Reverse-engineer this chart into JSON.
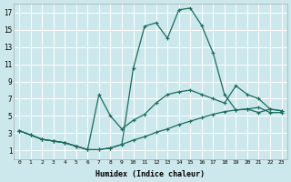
{
  "xlabel": "Humidex (Indice chaleur)",
  "bg_color": "#cce8ec",
  "grid_color": "#ffffff",
  "line_color": "#1a6b5e",
  "xlim": [
    -0.5,
    23.5
  ],
  "ylim": [
    0.0,
    18.0
  ],
  "xticks": [
    0,
    1,
    2,
    3,
    4,
    5,
    6,
    7,
    8,
    9,
    10,
    11,
    12,
    13,
    14,
    15,
    16,
    17,
    18,
    19,
    20,
    21,
    22,
    23
  ],
  "yticks": [
    1,
    3,
    5,
    7,
    9,
    11,
    13,
    15,
    17
  ],
  "line1_x": [
    0,
    1,
    2,
    3,
    4,
    5,
    6,
    7,
    8,
    9,
    10,
    11,
    12,
    13,
    14,
    15,
    16,
    17,
    18,
    19,
    20,
    21,
    22,
    23
  ],
  "line1_y": [
    3.3,
    2.8,
    2.3,
    2.1,
    1.9,
    1.5,
    1.1,
    1.1,
    1.3,
    1.7,
    2.2,
    2.6,
    3.1,
    3.5,
    4.0,
    4.4,
    4.8,
    5.2,
    5.5,
    5.7,
    5.8,
    6.0,
    5.4,
    5.4
  ],
  "line2_x": [
    0,
    1,
    2,
    3,
    4,
    5,
    6,
    7,
    8,
    9,
    10,
    11,
    12,
    13,
    14,
    15,
    16,
    17,
    18,
    19,
    20,
    21,
    22,
    23
  ],
  "line2_y": [
    3.3,
    2.8,
    2.3,
    2.1,
    1.9,
    1.5,
    1.1,
    7.5,
    5.0,
    3.5,
    4.5,
    5.2,
    6.5,
    7.5,
    7.8,
    8.0,
    7.5,
    7.0,
    6.5,
    8.5,
    7.5,
    7.0,
    5.8,
    5.6
  ],
  "line3_x": [
    0,
    1,
    2,
    3,
    4,
    5,
    6,
    7,
    8,
    9,
    10,
    11,
    12,
    13,
    14,
    15,
    16,
    17,
    18,
    19,
    20,
    21,
    22,
    23
  ],
  "line3_y": [
    3.3,
    2.8,
    2.3,
    2.1,
    1.9,
    1.5,
    1.1,
    1.1,
    1.3,
    1.7,
    10.5,
    15.4,
    15.8,
    14.0,
    17.3,
    17.5,
    15.5,
    12.3,
    7.5,
    5.7,
    5.8,
    5.4,
    5.8,
    5.6
  ]
}
